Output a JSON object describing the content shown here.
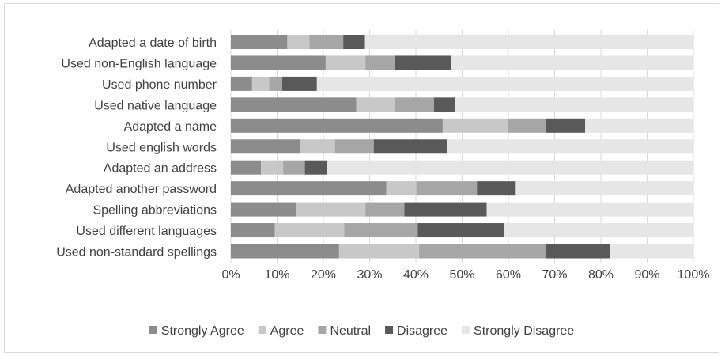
{
  "chart_data": {
    "type": "bar",
    "orientation": "horizontal",
    "stacked": "percent",
    "title": "",
    "xlabel": "",
    "ylabel": "",
    "xlim": [
      0,
      100
    ],
    "x_ticks": [
      "0%",
      "10%",
      "20%",
      "30%",
      "40%",
      "50%",
      "60%",
      "70%",
      "80%",
      "90%",
      "100%"
    ],
    "grid": "vertical",
    "legend_position": "bottom",
    "categories": [
      "Adapted a date of birth",
      "Used non-English language",
      "Used phone number",
      "Used native language",
      "Adapted a name",
      "Used english words",
      "Adapted an address",
      "Adapted another password",
      "Spelling abbreviations",
      "Used different languages",
      "Used non-standard spellings"
    ],
    "series": [
      {
        "name": "Strongly Agree",
        "color": "#8c8c8c",
        "values": [
          12.2,
          20.5,
          4.6,
          27.1,
          45.8,
          15.0,
          6.5,
          33.6,
          14.1,
          9.5,
          23.4
        ]
      },
      {
        "name": "Agree",
        "color": "#c8c8c8",
        "values": [
          4.8,
          8.6,
          3.7,
          8.4,
          14.0,
          7.5,
          4.8,
          6.5,
          15.0,
          15.0,
          17.3
        ]
      },
      {
        "name": "Neutral",
        "color": "#a6a6a6",
        "values": [
          7.3,
          6.4,
          2.8,
          8.4,
          8.4,
          8.4,
          4.7,
          13.1,
          8.4,
          15.9,
          27.3
        ]
      },
      {
        "name": "Disagree",
        "color": "#595959",
        "values": [
          4.7,
          12.2,
          7.5,
          4.6,
          8.4,
          15.9,
          4.7,
          8.4,
          17.8,
          18.7,
          14.0
        ]
      },
      {
        "name": "Strongly Disagree",
        "color": "#e6e6e6",
        "values": [
          71.0,
          52.3,
          81.4,
          51.5,
          23.4,
          53.2,
          79.3,
          38.4,
          44.7,
          40.9,
          18.0
        ]
      }
    ]
  }
}
